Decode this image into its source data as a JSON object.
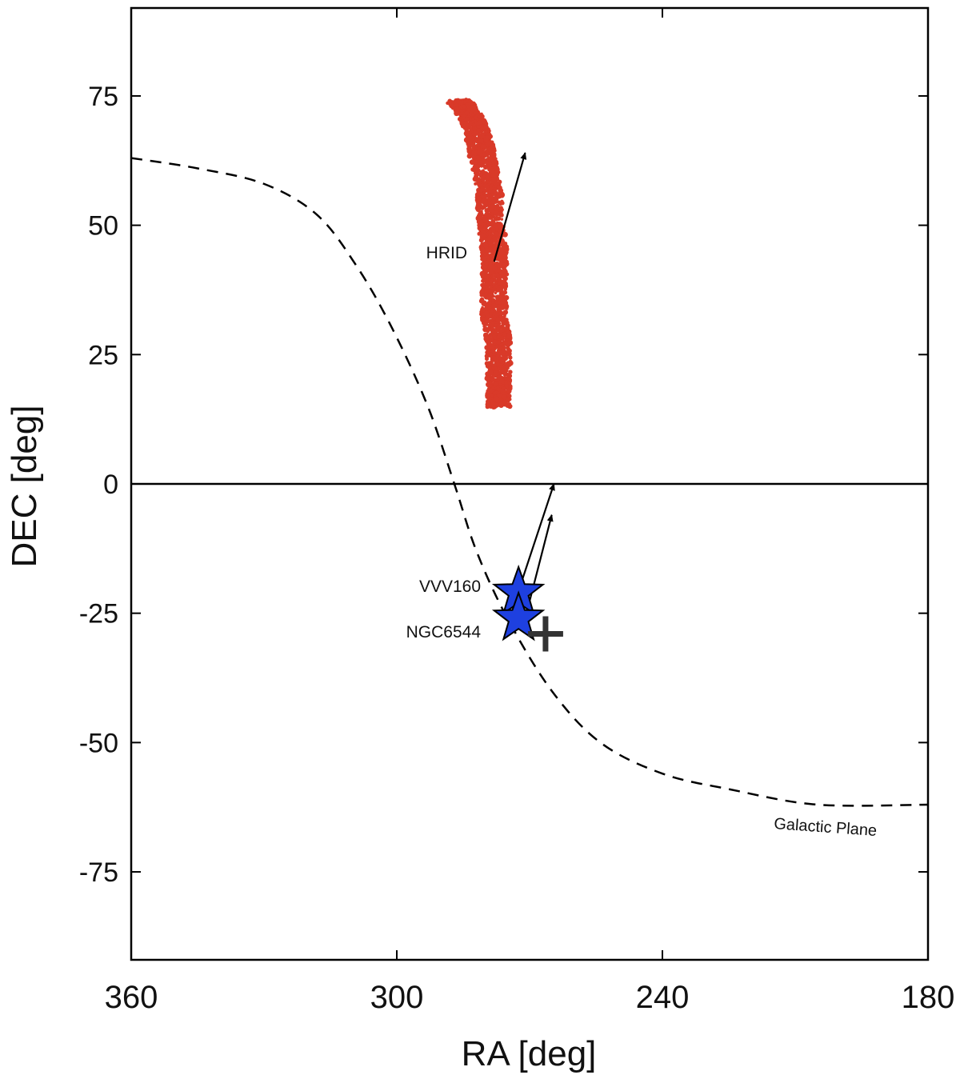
{
  "chart_data": {
    "type": "scatter",
    "xlabel": "RA [deg]",
    "ylabel": "DEC [deg]",
    "xlim": [
      360,
      180
    ],
    "ylim": [
      -92,
      92
    ],
    "xticks": [
      360,
      300,
      240,
      180
    ],
    "yticks": [
      75,
      50,
      25,
      0,
      -25,
      -50,
      -75
    ],
    "grid": false,
    "zero_line": 0,
    "galactic_plane": {
      "label": "Galactic Plane",
      "points": [
        [
          360,
          63
        ],
        [
          345,
          61
        ],
        [
          330,
          58
        ],
        [
          318,
          52
        ],
        [
          309,
          42
        ],
        [
          301,
          30
        ],
        [
          293,
          15
        ],
        [
          287,
          0
        ],
        [
          282,
          -13
        ],
        [
          275,
          -26
        ],
        [
          265,
          -40
        ],
        [
          254,
          -50
        ],
        [
          240,
          -56
        ],
        [
          225,
          -59
        ],
        [
          205,
          -62
        ],
        [
          180,
          -62
        ]
      ]
    },
    "stream": {
      "label": "HRID",
      "color": "#d93a29",
      "track": [
        [
          286,
          74
        ],
        [
          284,
          72
        ],
        [
          282,
          69
        ],
        [
          281,
          65
        ],
        [
          280,
          61
        ],
        [
          279,
          56
        ],
        [
          279,
          51
        ],
        [
          278,
          46
        ],
        [
          278,
          42
        ],
        [
          278,
          37
        ],
        [
          278,
          32
        ],
        [
          277,
          27
        ],
        [
          277,
          22
        ],
        [
          277,
          18
        ],
        [
          277,
          15
        ]
      ]
    },
    "clusters": [
      {
        "name": "VVV160",
        "ra": 272.5,
        "dec": -21,
        "color": "#1e40e0"
      },
      {
        "name": "NGC6544",
        "ra": 272.5,
        "dec": -26,
        "color": "#1e40e0"
      }
    ],
    "galactic_center": {
      "ra": 266.4,
      "dec": -29.0
    },
    "arrows": [
      {
        "from": [
          278,
          43
        ],
        "to": [
          271,
          64
        ]
      },
      {
        "from": [
          273,
          -22
        ],
        "to": [
          264.5,
          0
        ]
      },
      {
        "from": [
          271,
          -26
        ],
        "to": [
          265,
          -6
        ]
      }
    ]
  }
}
